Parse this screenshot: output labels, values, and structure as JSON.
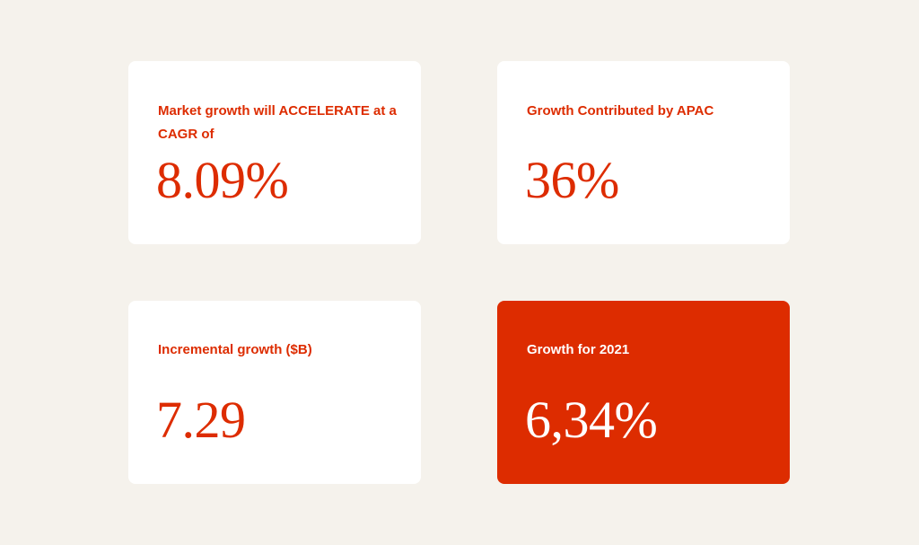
{
  "cards": [
    {
      "label": "Market growth will ACCELERATE at a CAGR of",
      "value": "8.09%"
    },
    {
      "label": "Growth Contributed by APAC",
      "value": "36%"
    },
    {
      "label": "Incremental growth ($B)",
      "value": "7.29"
    },
    {
      "label": "Growth for 2021",
      "value": "6,34%"
    }
  ],
  "colors": {
    "background": "#f5f2ec",
    "card": "#ffffff",
    "accent": "#dd2c00",
    "accent_text": "#ffffff"
  }
}
